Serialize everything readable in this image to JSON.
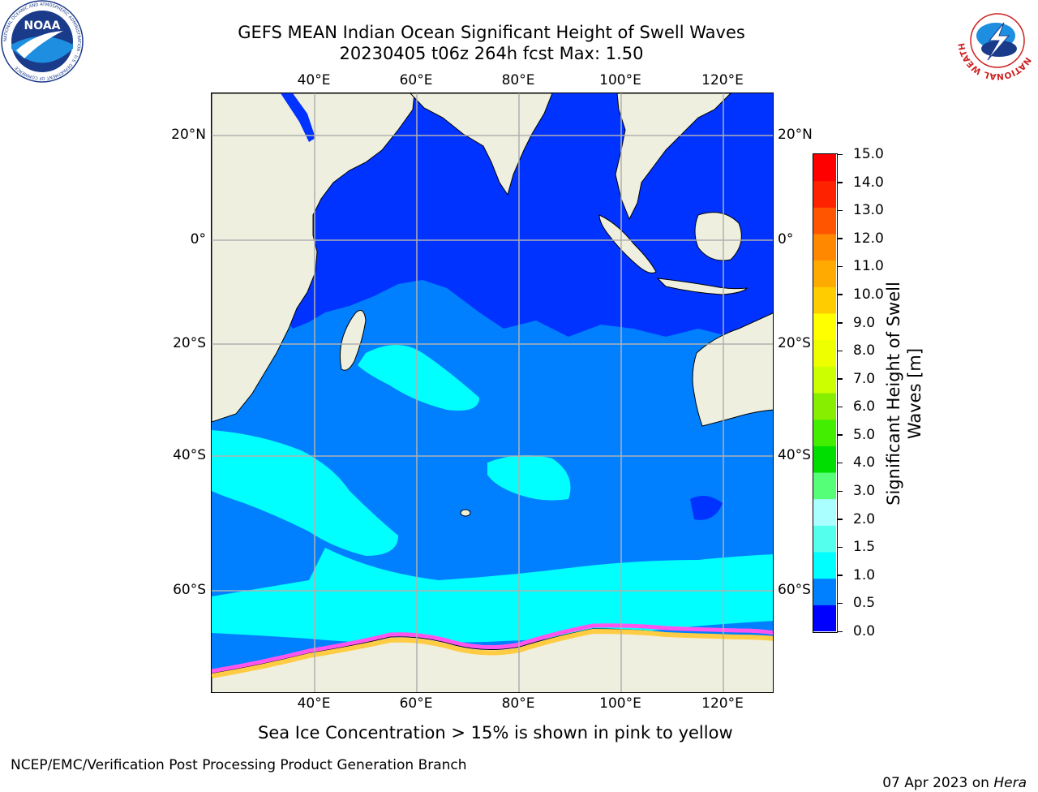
{
  "title": {
    "line1": "GEFS MEAN Indian Ocean Significant Height of Swell Waves",
    "line2": "20230405 t06z 264h fcst   Max: 1.50"
  },
  "map": {
    "lon_ticks": [
      "40°E",
      "60°E",
      "80°E",
      "100°E",
      "120°E"
    ],
    "lat_ticks": [
      "20°N",
      "0°",
      "20°S",
      "40°S",
      "60°S"
    ],
    "lon_range": [
      20,
      130
    ],
    "lat_range": [
      -74,
      28
    ],
    "colors": {
      "land": "#efefdf",
      "ocean_low": "#0033ff",
      "ocean_mid": "#0080ff",
      "ocean_high": "#00ffff",
      "ice_pink": "#ff55ee",
      "ice_yellow": "#ffcc44",
      "grid": "#b0b0b0"
    }
  },
  "colorbar": {
    "label": "Significant Height of Swell Waves [m]",
    "ticks": [
      "15.0",
      "14.0",
      "13.0",
      "12.0",
      "11.0",
      "10.0",
      "9.0",
      "8.0",
      "7.0",
      "6.0",
      "5.0",
      "4.0",
      "3.0",
      "2.0",
      "1.5",
      "1.0",
      "0.5",
      "0.0"
    ],
    "bands": [
      "#0000ff",
      "#0080ff",
      "#00ffff",
      "#55ffee",
      "#aaffff",
      "#55ff77",
      "#00dd00",
      "#44ee00",
      "#88ee00",
      "#ccff00",
      "#eeff00",
      "#ffff00",
      "#ffcc00",
      "#ffaa00",
      "#ff8800",
      "#ff5500",
      "#ff2200",
      "#ff0000"
    ]
  },
  "footer": {
    "note": "Sea Ice Concentration > 15% is shown in pink to yellow",
    "branch": "NCEP/EMC/Verification Post Processing Product Generation Branch",
    "date": "07 Apr 2023 on ",
    "host": "Hera"
  },
  "logos": {
    "noaa_text": "NOAA",
    "noaa_ring": "NATIONAL OCEANIC AND ATMOSPHERIC ADMINISTRATION · U.S. DEPARTMENT OF COMMERCE",
    "nws_ring": "NATIONAL WEATHER SERVICE"
  }
}
